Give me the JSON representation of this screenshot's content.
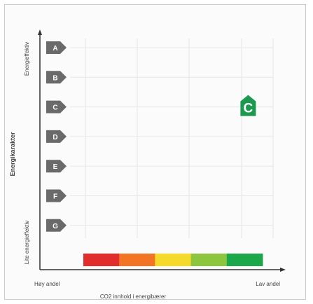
{
  "y_axis": {
    "label": "Energikarakter",
    "top_label": "Energieffektiv",
    "bottom_label": "Lite energieffektiv"
  },
  "x_axis": {
    "label": "CO2 innhold i energibærer",
    "left_label": "Høy andel",
    "right_label": "Lav andel"
  },
  "ratings": [
    "A",
    "B",
    "C",
    "D",
    "E",
    "F",
    "G"
  ],
  "rating_color": "#6a6a6a",
  "co2_bar": {
    "colors": [
      "#e22d2d",
      "#f27425",
      "#f6da2b",
      "#8cc63f",
      "#1ca84a"
    ]
  },
  "result": {
    "rating": "C",
    "co2_segment": 5,
    "color": "#1a9a4f"
  }
}
